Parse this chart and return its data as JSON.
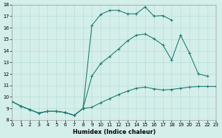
{
  "xlabel": "Humidex (Indice chaleur)",
  "bg_color": "#d4eeea",
  "line_color": "#1a7a6e",
  "grid_color": "#b8ddd8",
  "xlim": [
    0,
    23
  ],
  "ylim": [
    8,
    18
  ],
  "xticks": [
    0,
    1,
    2,
    3,
    4,
    5,
    6,
    7,
    8,
    9,
    10,
    11,
    12,
    13,
    14,
    15,
    16,
    17,
    18,
    19,
    20,
    21,
    22,
    23
  ],
  "yticks": [
    8,
    9,
    10,
    11,
    12,
    13,
    14,
    15,
    16,
    17,
    18
  ],
  "line1_x": [
    0,
    1,
    2,
    3,
    4,
    5,
    6,
    7,
    8,
    9,
    10,
    11,
    12,
    13,
    14,
    15,
    16,
    17,
    18,
    19,
    20,
    21,
    22,
    23
  ],
  "line1_y": [
    9.6,
    9.2,
    8.9,
    8.6,
    8.75,
    8.75,
    8.65,
    8.4,
    9.0,
    9.1,
    9.5,
    9.85,
    10.2,
    10.5,
    10.75,
    10.85,
    10.7,
    10.6,
    10.65,
    10.75,
    10.85,
    10.9,
    10.9,
    10.9
  ],
  "line2_x": [
    0,
    1,
    2,
    3,
    4,
    5,
    6,
    7,
    8,
    9,
    10,
    11,
    12,
    13,
    14,
    15,
    16,
    17,
    18,
    19,
    20,
    21,
    22
  ],
  "line2_y": [
    9.6,
    9.2,
    8.9,
    8.6,
    8.75,
    8.75,
    8.65,
    8.4,
    9.0,
    11.8,
    12.9,
    13.5,
    14.15,
    14.85,
    15.35,
    15.45,
    15.05,
    14.5,
    13.2,
    15.35,
    13.8,
    12.0,
    11.8
  ],
  "line3_x": [
    0,
    1,
    2,
    3,
    4,
    5,
    6,
    7,
    8,
    9,
    10,
    11,
    12,
    13,
    14,
    15,
    16,
    17,
    18
  ],
  "line3_y": [
    9.6,
    9.2,
    8.9,
    8.6,
    8.75,
    8.75,
    8.65,
    8.4,
    9.0,
    16.2,
    17.15,
    17.5,
    17.5,
    17.2,
    17.2,
    17.8,
    17.0,
    17.05,
    16.65
  ]
}
